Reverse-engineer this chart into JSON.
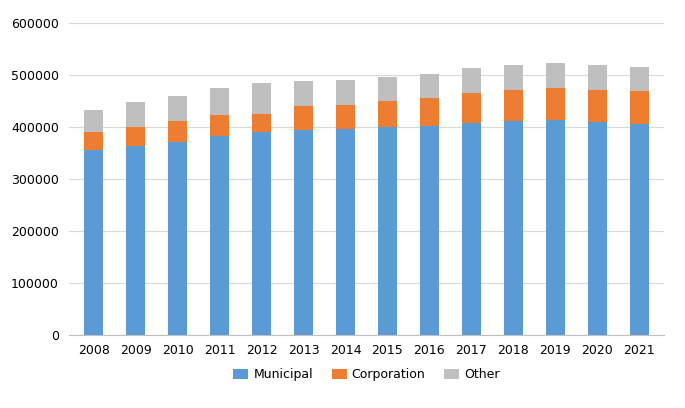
{
  "years": [
    2008,
    2009,
    2010,
    2011,
    2012,
    2013,
    2014,
    2015,
    2016,
    2017,
    2018,
    2019,
    2020,
    2021
  ],
  "municipal": [
    355000,
    363000,
    370000,
    382000,
    390000,
    393000,
    395000,
    399000,
    402000,
    407000,
    411000,
    413000,
    408000,
    405000
  ],
  "corporation": [
    35000,
    37000,
    40000,
    40000,
    35000,
    47000,
    47000,
    50000,
    53000,
    58000,
    60000,
    62000,
    63000,
    63000
  ],
  "other": [
    42000,
    47000,
    48000,
    53000,
    58000,
    48000,
    47000,
    46000,
    47000,
    47000,
    48000,
    48000,
    47000,
    46000
  ],
  "municipal_color": "#5b9bd5",
  "corporation_color": "#ed7d31",
  "other_color": "#bfbfbf",
  "bar_width": 0.45,
  "ylim": [
    0,
    620000
  ],
  "yticks": [
    0,
    100000,
    200000,
    300000,
    400000,
    500000,
    600000
  ],
  "legend_labels": [
    "Municipal",
    "Corporation",
    "Other"
  ],
  "background_color": "#ffffff",
  "grid_color": "#d9d9d9"
}
